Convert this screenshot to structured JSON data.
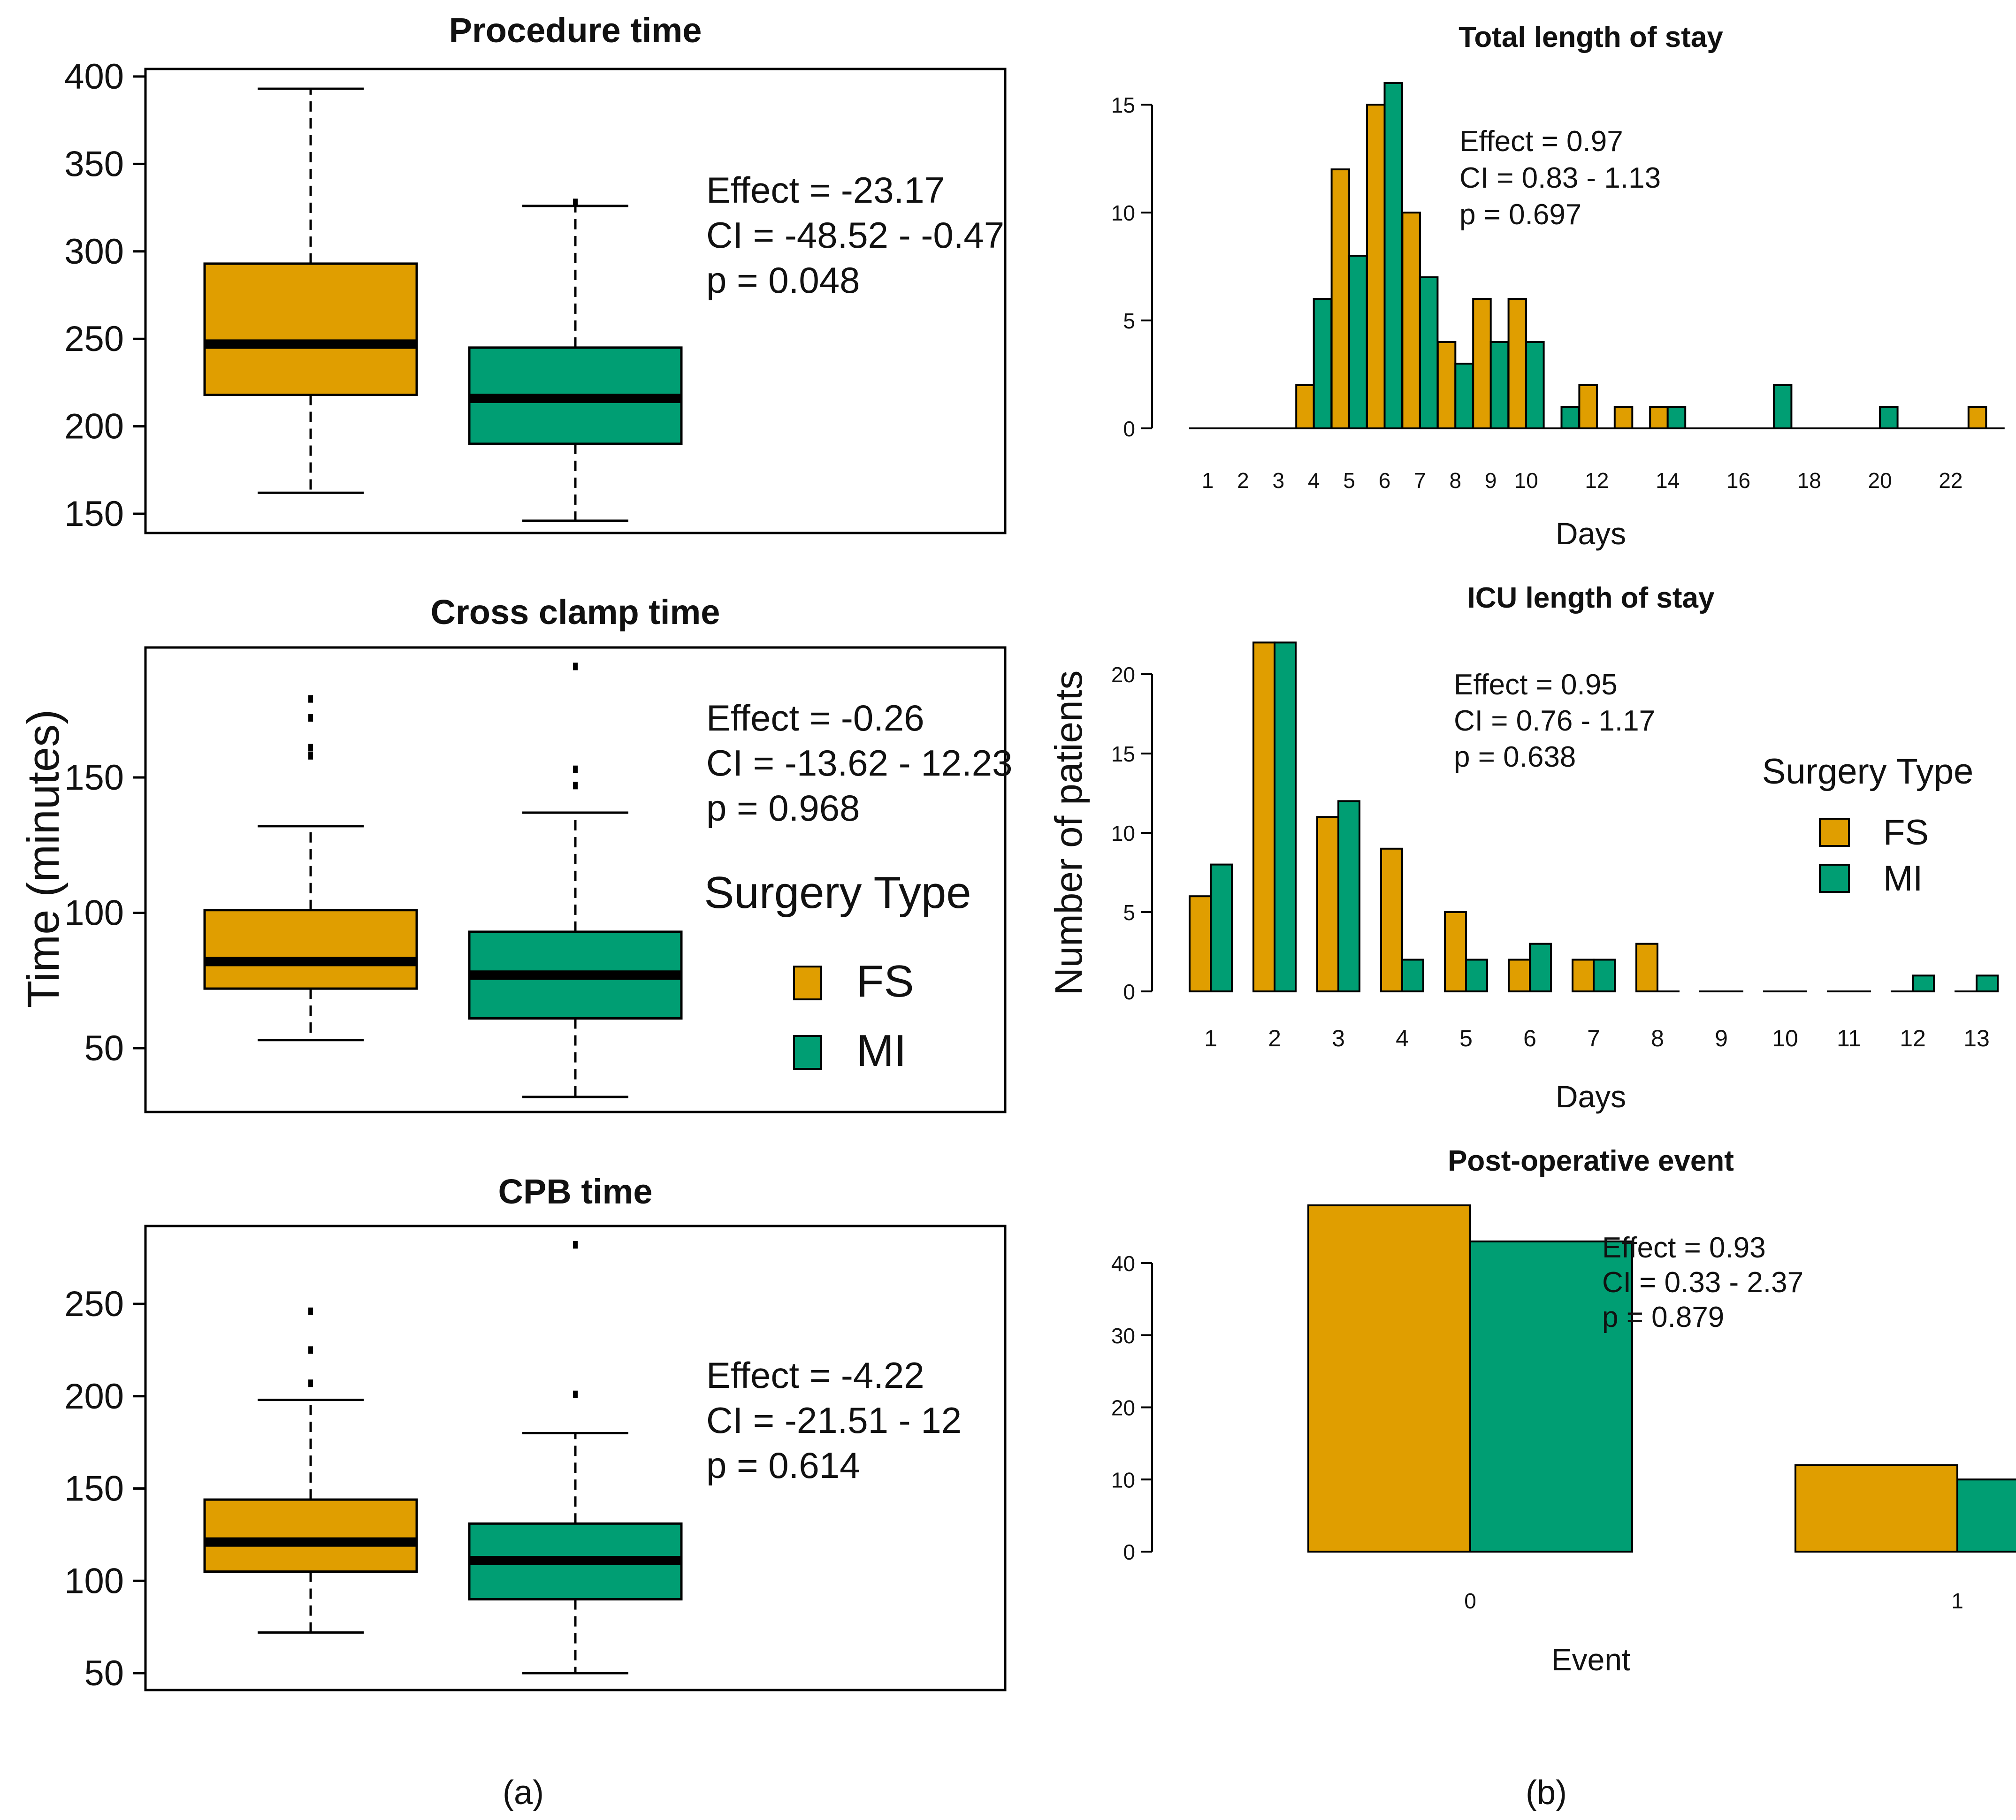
{
  "colors": {
    "FS": "#E09E00",
    "MI": "#009E73",
    "axis": "#000000"
  },
  "shared_labels": {
    "left_ylabel": "Time (minutes)",
    "right_ylabel": "Number of patients",
    "panel_a": "(a)",
    "panel_b": "(b)"
  },
  "chart_data": [
    {
      "id": "procedure",
      "type": "box",
      "title": "Procedure time",
      "categories": [
        "FS",
        "MI"
      ],
      "ylim": [
        145,
        402
      ],
      "yticks": [
        150,
        200,
        250,
        300,
        350,
        400
      ],
      "boxes": [
        {
          "name": "FS",
          "min": 162,
          "q1": 218,
          "median": 247,
          "q3": 293,
          "max": 393,
          "outliers": []
        },
        {
          "name": "MI",
          "min": 146,
          "q1": 190,
          "median": 216,
          "q3": 245,
          "max": 326,
          "outliers": [
            328
          ]
        }
      ],
      "annotation": [
        "Effect = -23.17",
        "CI = -48.52 - -0.47",
        "p = 0.048"
      ]
    },
    {
      "id": "crossclamp",
      "type": "box",
      "title": "Cross clamp time",
      "categories": [
        "FS",
        "MI"
      ],
      "ylim": [
        28,
        198
      ],
      "yticks": [
        50,
        100,
        150
      ],
      "boxes": [
        {
          "name": "FS",
          "min": 53,
          "q1": 72,
          "median": 82,
          "q3": 101,
          "max": 132,
          "outliers": [
            158,
            161,
            172,
            179
          ]
        },
        {
          "name": "MI",
          "min": 32,
          "q1": 61,
          "median": 77,
          "q3": 93,
          "max": 137,
          "outliers": [
            147,
            153,
            191
          ]
        }
      ],
      "annotation": [
        "Effect = -0.26",
        "CI = -13.62 - 12.23",
        "p = 0.968"
      ],
      "legend": {
        "title": "Surgery Type",
        "entries": [
          "FS",
          "MI"
        ],
        "placement": "right"
      }
    },
    {
      "id": "cpb",
      "type": "box",
      "title": "CPB time",
      "categories": [
        "FS",
        "MI"
      ],
      "ylim": [
        40,
        292
      ],
      "yticks": [
        50,
        100,
        150,
        200,
        250
      ],
      "boxes": [
        {
          "name": "FS",
          "min": 72,
          "q1": 105,
          "median": 121,
          "q3": 144,
          "max": 198,
          "outliers": [
            207,
            225,
            246
          ]
        },
        {
          "name": "MI",
          "min": 50,
          "q1": 90,
          "median": 111,
          "q3": 131,
          "max": 180,
          "outliers": [
            201,
            282
          ]
        }
      ],
      "annotation": [
        "Effect = -4.22",
        "CI = -21.51 - 12",
        "p = 0.614"
      ]
    },
    {
      "id": "totalstay",
      "type": "bar",
      "title": "Total length of stay",
      "xlabel": "Days",
      "ylim": [
        0,
        16
      ],
      "yticks": [
        0,
        5,
        10,
        15
      ],
      "categories": [
        "1",
        "2",
        "3",
        "4",
        "5",
        "6",
        "7",
        "8",
        "9",
        "10",
        "11",
        "12",
        "13",
        "14",
        "15",
        "16",
        "17",
        "18",
        "19",
        "20",
        "21",
        "22",
        "23"
      ],
      "xtick_labels": [
        "1",
        "2",
        "3",
        "4",
        "5",
        "6",
        "7",
        "8",
        "9",
        "10",
        "12",
        "14",
        "16",
        "18",
        "20",
        "22"
      ],
      "series": [
        {
          "name": "FS",
          "values": [
            0,
            0,
            0,
            2,
            12,
            15,
            10,
            4,
            6,
            6,
            0,
            2,
            1,
            1,
            0,
            0,
            0,
            0,
            0,
            0,
            0,
            0,
            1
          ]
        },
        {
          "name": "MI",
          "values": [
            0,
            0,
            0,
            6,
            8,
            16,
            7,
            3,
            4,
            4,
            1,
            0,
            0,
            1,
            0,
            0,
            2,
            0,
            0,
            1,
            0,
            0,
            0
          ]
        }
      ],
      "annotation": [
        "Effect = 0.97",
        "CI = 0.83 - 1.13",
        "p = 0.697"
      ]
    },
    {
      "id": "icustay",
      "type": "bar",
      "title": "ICU length of stay",
      "xlabel": "Days",
      "ylim": [
        0,
        22
      ],
      "yticks": [
        0,
        5,
        10,
        15,
        20
      ],
      "categories": [
        "1",
        "2",
        "3",
        "4",
        "5",
        "6",
        "7",
        "8",
        "9",
        "10",
        "11",
        "12",
        "13"
      ],
      "xtick_labels": [
        "1",
        "2",
        "3",
        "4",
        "5",
        "6",
        "7",
        "8",
        "9",
        "10",
        "11",
        "12",
        "13"
      ],
      "series": [
        {
          "name": "FS",
          "values": [
            6,
            22,
            11,
            9,
            5,
            2,
            2,
            3,
            0,
            0,
            0,
            0,
            0
          ]
        },
        {
          "name": "MI",
          "values": [
            8,
            22,
            12,
            2,
            2,
            3,
            2,
            0,
            0,
            0,
            0,
            1,
            1
          ]
        }
      ],
      "annotation": [
        "Effect = 0.95",
        "CI = 0.76 - 1.17",
        "p = 0.638"
      ],
      "legend": {
        "title": "Surgery Type",
        "entries": [
          "FS",
          "MI"
        ],
        "placement": "right"
      }
    },
    {
      "id": "postop",
      "type": "bar",
      "title": "Post-operative event",
      "xlabel": "Event",
      "ylim": [
        0,
        48
      ],
      "yticks": [
        0,
        10,
        20,
        30,
        40
      ],
      "categories": [
        "0",
        "1"
      ],
      "xtick_labels": [
        "0",
        "1"
      ],
      "series": [
        {
          "name": "FS",
          "values": [
            48,
            12
          ]
        },
        {
          "name": "MI",
          "values": [
            43,
            10
          ]
        }
      ],
      "annotation": [
        "Effect = 0.93",
        "CI = 0.33 - 2.37",
        "p = 0.879"
      ]
    }
  ]
}
